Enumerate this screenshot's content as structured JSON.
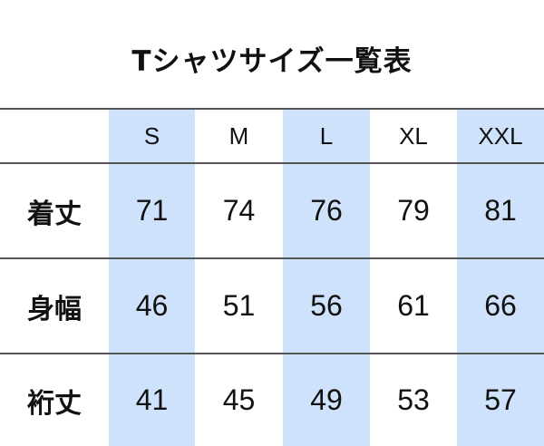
{
  "title": "Tシャツサイズ一覧表",
  "highlight_color": "#cfe2fc",
  "columns": [
    "S",
    "M",
    "L",
    "XL",
    "XXL"
  ],
  "rows": [
    {
      "label": "着丈",
      "values": [
        "71",
        "74",
        "76",
        "79",
        "81"
      ]
    },
    {
      "label": "身幅",
      "values": [
        "46",
        "51",
        "56",
        "61",
        "66"
      ]
    },
    {
      "label": "裄丈",
      "values": [
        "41",
        "45",
        "49",
        "53",
        "57"
      ]
    }
  ]
}
